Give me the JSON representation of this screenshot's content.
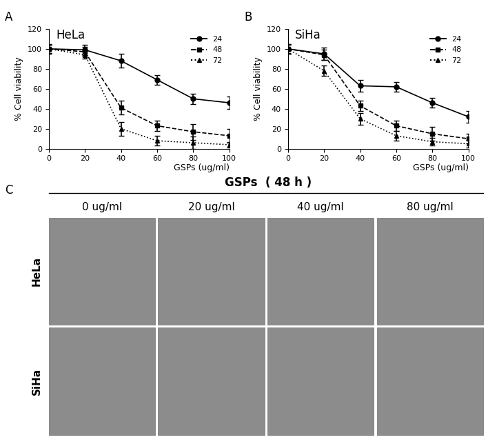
{
  "chart_data": [
    {
      "type": "line",
      "title": "HeLa",
      "annotations": [
        "A"
      ],
      "x_label": "GSPs (ug/ml)",
      "y_label": "% Cell viability",
      "x": [
        0,
        20,
        40,
        60,
        80,
        100
      ],
      "xlim": [
        0,
        100
      ],
      "xticks": [
        0,
        20,
        40,
        60,
        80,
        100
      ],
      "ylim": [
        0,
        120
      ],
      "yticks": [
        0,
        20,
        40,
        60,
        80,
        100,
        120
      ],
      "legend": "upper right",
      "grid": false,
      "series": [
        {
          "name": "24",
          "color": "#000000",
          "marker": "circle",
          "line_style": "solid",
          "values": [
            100,
            99,
            88,
            69,
            50,
            46
          ],
          "errors": [
            5,
            5,
            7,
            5,
            5,
            6
          ]
        },
        {
          "name": "48",
          "color": "#000000",
          "marker": "square",
          "line_style": "dashed",
          "values": [
            100,
            97,
            41,
            23,
            17,
            13
          ],
          "errors": [
            4,
            5,
            7,
            5,
            8,
            7
          ]
        },
        {
          "name": "72",
          "color": "#000000",
          "marker": "triangle",
          "line_style": "dotted",
          "values": [
            100,
            94,
            20,
            8,
            6,
            4
          ],
          "errors": [
            4,
            4,
            7,
            5,
            6,
            3
          ]
        }
      ]
    },
    {
      "type": "line",
      "title": "SiHa",
      "annotations": [
        "B"
      ],
      "x_label": "GSPs (ug/ml)",
      "y_label": "% Cell viability",
      "x": [
        0,
        20,
        40,
        60,
        80,
        100
      ],
      "xlim": [
        0,
        100
      ],
      "xticks": [
        0,
        20,
        40,
        60,
        80,
        100
      ],
      "ylim": [
        0,
        120
      ],
      "yticks": [
        0,
        20,
        40,
        60,
        80,
        100,
        120
      ],
      "legend": "upper right",
      "grid": false,
      "series": [
        {
          "name": "24",
          "color": "#000000",
          "marker": "circle",
          "line_style": "solid",
          "values": [
            100,
            95,
            63,
            62,
            46,
            32
          ],
          "errors": [
            5,
            6,
            6,
            5,
            5,
            6
          ]
        },
        {
          "name": "48",
          "color": "#000000",
          "marker": "square",
          "line_style": "dashed",
          "values": [
            100,
            94,
            43,
            23,
            15,
            10
          ],
          "errors": [
            4,
            5,
            5,
            5,
            7,
            5
          ]
        },
        {
          "name": "72",
          "color": "#000000",
          "marker": "triangle",
          "line_style": "dotted",
          "values": [
            100,
            78,
            30,
            13,
            7,
            5
          ],
          "errors": [
            5,
            5,
            6,
            5,
            4,
            4
          ]
        }
      ]
    }
  ],
  "image_panel": {
    "label": "C",
    "header": "GSPs",
    "condition": "( 48 h )",
    "columns": [
      "0 ug/ml",
      "20 ug/ml",
      "40 ug/ml",
      "80 ug/ml"
    ],
    "rows": [
      "HeLa",
      "SiHa"
    ]
  }
}
